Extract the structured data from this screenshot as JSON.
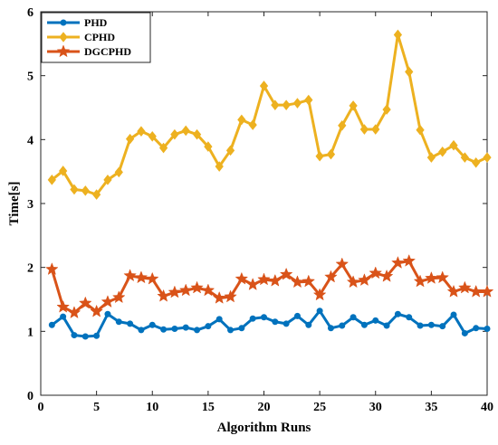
{
  "chart_data": {
    "type": "line",
    "title": "",
    "xlabel": "Algorithm Runs",
    "ylabel": "Time[s]",
    "xlim": [
      0,
      40
    ],
    "ylim": [
      0,
      6
    ],
    "xticks": [
      0,
      5,
      10,
      15,
      20,
      25,
      30,
      35,
      40
    ],
    "yticks": [
      0,
      1,
      2,
      3,
      4,
      5,
      6
    ],
    "grid": false,
    "legend_position": "top-left",
    "x": [
      1,
      2,
      3,
      4,
      5,
      6,
      7,
      8,
      9,
      10,
      11,
      12,
      13,
      14,
      15,
      16,
      17,
      18,
      19,
      20,
      21,
      22,
      23,
      24,
      25,
      26,
      27,
      28,
      29,
      30,
      31,
      32,
      33,
      34,
      35,
      36,
      37,
      38,
      39,
      40
    ],
    "series": [
      {
        "name": "PHD",
        "color": "#0072BD",
        "marker": "circle",
        "values": [
          1.1,
          1.23,
          0.94,
          0.92,
          0.93,
          1.27,
          1.15,
          1.12,
          1.02,
          1.1,
          1.03,
          1.04,
          1.06,
          1.02,
          1.08,
          1.19,
          1.02,
          1.05,
          1.2,
          1.22,
          1.15,
          1.12,
          1.24,
          1.1,
          1.32,
          1.05,
          1.09,
          1.22,
          1.1,
          1.17,
          1.09,
          1.27,
          1.22,
          1.09,
          1.1,
          1.08,
          1.26,
          0.97,
          1.05,
          1.04
        ]
      },
      {
        "name": "CPHD",
        "color": "#EDB120",
        "marker": "diamond",
        "values": [
          3.37,
          3.51,
          3.22,
          3.2,
          3.14,
          3.37,
          3.49,
          4.01,
          4.13,
          4.05,
          3.87,
          4.08,
          4.14,
          4.08,
          3.89,
          3.58,
          3.83,
          4.31,
          4.23,
          4.84,
          4.54,
          4.54,
          4.57,
          4.62,
          3.74,
          3.77,
          4.22,
          4.53,
          4.16,
          4.16,
          4.47,
          5.64,
          5.06,
          4.15,
          3.72,
          3.81,
          3.91,
          3.72,
          3.64,
          3.72
        ]
      },
      {
        "name": "DGCPHD",
        "color": "#D95319",
        "marker": "star",
        "values": [
          1.97,
          1.38,
          1.29,
          1.44,
          1.31,
          1.46,
          1.53,
          1.87,
          1.84,
          1.82,
          1.55,
          1.61,
          1.64,
          1.68,
          1.64,
          1.52,
          1.54,
          1.82,
          1.73,
          1.81,
          1.79,
          1.89,
          1.77,
          1.78,
          1.57,
          1.85,
          2.05,
          1.77,
          1.8,
          1.91,
          1.86,
          2.07,
          2.1,
          1.78,
          1.83,
          1.84,
          1.62,
          1.68,
          1.62,
          1.62
        ]
      }
    ]
  }
}
